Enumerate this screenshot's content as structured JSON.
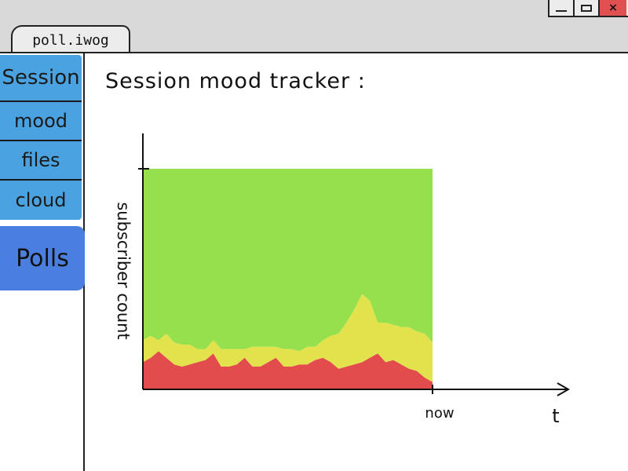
{
  "window": {
    "tab_title": "poll.iwog",
    "controls": {
      "minimize": "minimize-icon",
      "maximize": "maximize-icon",
      "close": "×"
    }
  },
  "sidebar": {
    "items": [
      {
        "label": "Session"
      },
      {
        "label": "mood"
      },
      {
        "label": "files"
      },
      {
        "label": "cloud"
      }
    ],
    "polls_label": "Polls",
    "colors": {
      "nav": "#4aa3e0",
      "polls": "#4a7fe0"
    }
  },
  "main": {
    "title": "Session mood tracker :"
  },
  "chart_data": {
    "type": "area",
    "stacked": true,
    "ylabel": "subscriber count",
    "xlabel": "t",
    "x_tick_label": "now",
    "x": [
      0,
      1,
      2,
      3,
      4,
      5,
      6,
      7,
      8,
      9,
      10,
      11,
      12,
      13,
      14,
      15,
      16,
      17,
      18,
      19,
      20,
      21,
      22,
      23,
      24,
      25,
      26,
      27,
      28,
      29,
      30,
      31,
      32,
      33,
      34,
      35,
      36,
      37
    ],
    "series": [
      {
        "color": "#e24c4c",
        "values": [
          12,
          14,
          17,
          14,
          11,
          10,
          11,
          12,
          13,
          16,
          10,
          10,
          11,
          14,
          10,
          10,
          12,
          14,
          10,
          10,
          11,
          11,
          13,
          14,
          12,
          9,
          10,
          11,
          12,
          14,
          16,
          12,
          13,
          11,
          9,
          8,
          5,
          3
        ]
      },
      {
        "color": "#e2e24c",
        "values": [
          10,
          10,
          5,
          11,
          10,
          10,
          9,
          6,
          5,
          6,
          8,
          8,
          7,
          4,
          9,
          9,
          7,
          5,
          8,
          8,
          6,
          8,
          6,
          8,
          12,
          16,
          20,
          25,
          31,
          26,
          14,
          18,
          16,
          17,
          19,
          18,
          20,
          18
        ]
      },
      {
        "color": "#96e04e",
        "values": [
          78,
          76,
          78,
          75,
          79,
          80,
          80,
          82,
          82,
          78,
          82,
          82,
          82,
          82,
          81,
          81,
          81,
          81,
          82,
          82,
          83,
          81,
          81,
          78,
          76,
          75,
          70,
          64,
          57,
          60,
          70,
          70,
          71,
          72,
          72,
          74,
          75,
          79
        ]
      }
    ],
    "ylim": [
      0,
      100
    ],
    "grid": false,
    "legend": "none"
  }
}
